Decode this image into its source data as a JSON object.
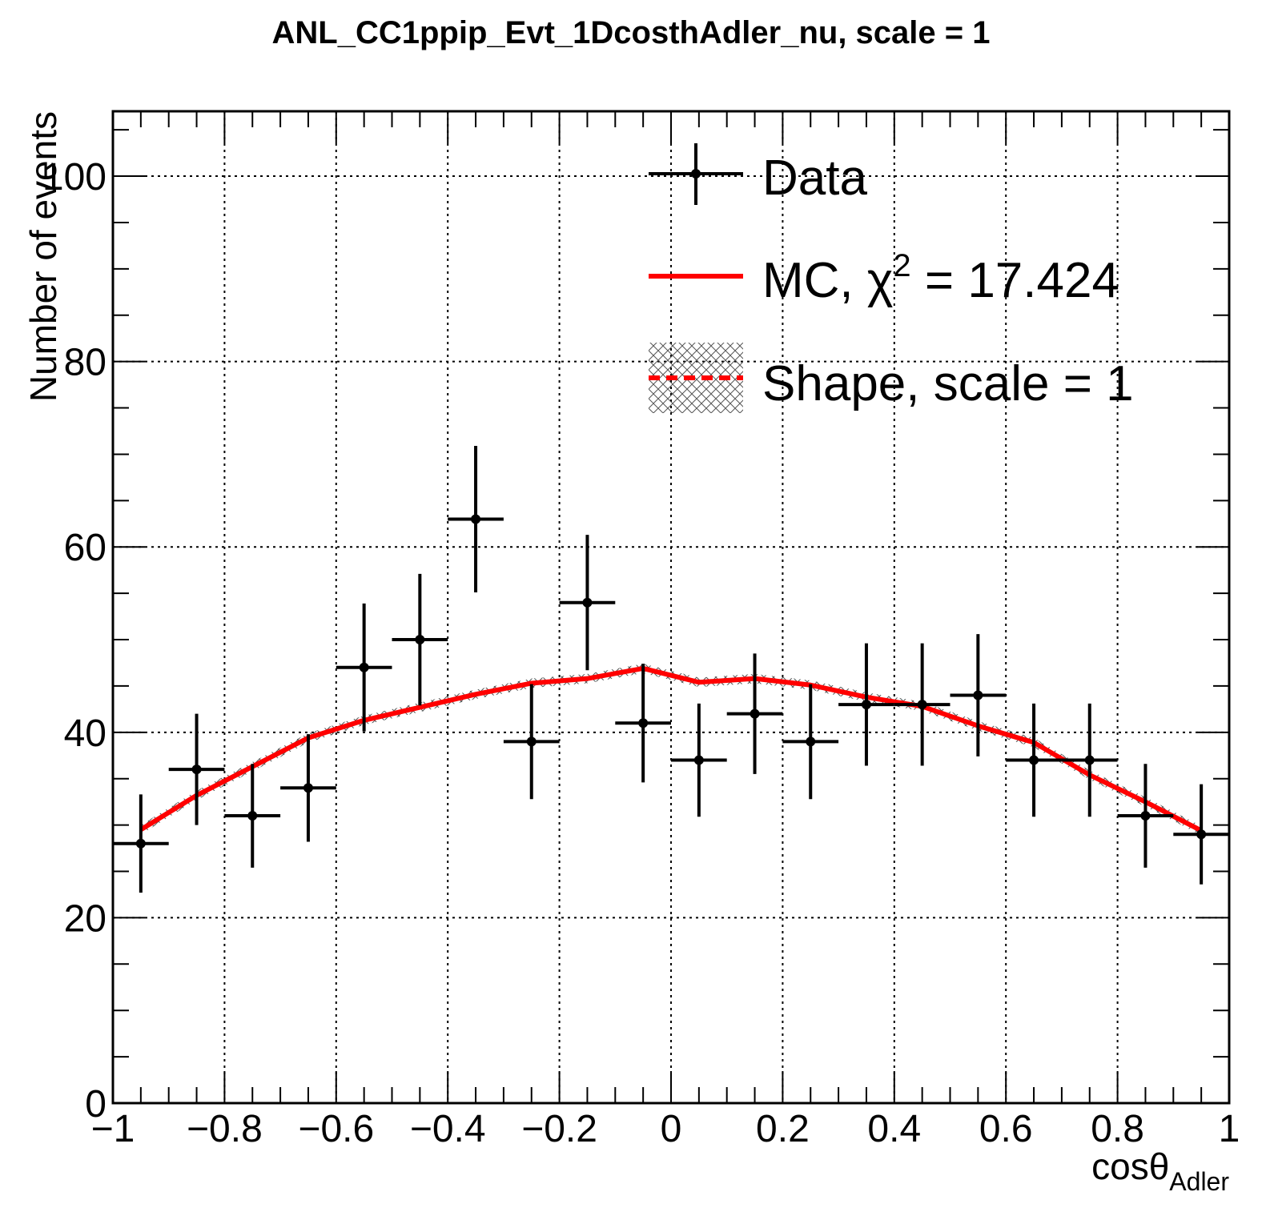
{
  "chart_data": {
    "type": "scatter",
    "title": "ANL_CC1ppip_Evt_1DcosthAdler_nu, scale = 1",
    "xlabel": "cosθ",
    "xlabel_subscript": "Adler",
    "ylabel": "Number of events",
    "xlim": [
      -1,
      1
    ],
    "ylim": [
      0,
      107
    ],
    "grid": true,
    "x_ticks": [
      -1,
      -0.8,
      -0.6,
      -0.4,
      -0.2,
      0,
      0.2,
      0.4,
      0.6,
      0.8,
      1
    ],
    "x_tick_labels": [
      "−1",
      "−0.8",
      "−0.6",
      "−0.4",
      "−0.2",
      "0",
      "0.2",
      "0.4",
      "0.6",
      "0.8",
      "1"
    ],
    "y_ticks": [
      0,
      20,
      40,
      60,
      80,
      100
    ],
    "y_tick_labels": [
      "0",
      "20",
      "40",
      "60",
      "80",
      "100"
    ],
    "legend_position": "top-right",
    "legend": {
      "data": "Data",
      "mc_prefix": "MC, χ",
      "mc_sup": "2",
      "mc_suffix": " = 17.424",
      "shape": "Shape, scale = 1"
    },
    "colors": {
      "data": "#000000",
      "mc": "#ff0000",
      "shape": "#ff0000"
    },
    "series": [
      {
        "name": "Data",
        "x": [
          -0.95,
          -0.85,
          -0.75,
          -0.65,
          -0.55,
          -0.45,
          -0.35,
          -0.25,
          -0.15,
          -0.05,
          0.05,
          0.15,
          0.25,
          0.35,
          0.45,
          0.55,
          0.65,
          0.75,
          0.85,
          0.95
        ],
        "x_half_width": 0.05,
        "y": [
          28,
          36,
          31,
          34,
          47,
          50,
          63,
          39,
          54,
          41,
          37,
          42,
          39,
          43,
          43,
          44,
          37,
          37,
          31,
          29
        ],
        "yerr": [
          5.3,
          6.0,
          5.6,
          5.8,
          6.9,
          7.1,
          7.9,
          6.2,
          7.3,
          6.4,
          6.1,
          6.5,
          6.2,
          6.6,
          6.6,
          6.6,
          6.1,
          6.1,
          5.6,
          5.4
        ]
      },
      {
        "name": "MC",
        "x": [
          -0.95,
          -0.85,
          -0.75,
          -0.65,
          -0.55,
          -0.45,
          -0.35,
          -0.25,
          -0.15,
          -0.05,
          0.05,
          0.15,
          0.25,
          0.35,
          0.45,
          0.55,
          0.65,
          0.75,
          0.85,
          0.95
        ],
        "y": [
          29.5,
          33.2,
          36.3,
          39.4,
          41.3,
          42.7,
          44.1,
          45.3,
          45.8,
          46.9,
          45.4,
          45.8,
          45.1,
          43.8,
          42.8,
          40.7,
          38.9,
          35.4,
          32.5,
          29.4
        ]
      }
    ]
  }
}
